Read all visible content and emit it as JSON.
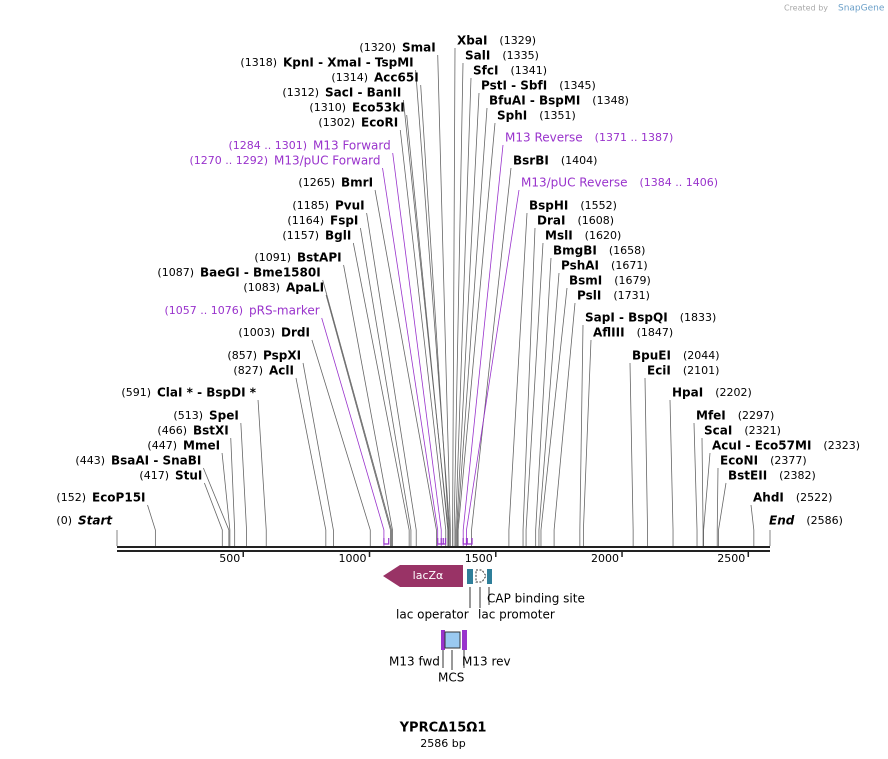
{
  "header": {
    "credit": "Created by",
    "brand": "SnapGene"
  },
  "map": {
    "ruler_ticks": [
      500,
      1000,
      1500,
      2000,
      2500
    ],
    "ends": [
      {
        "label": "Start",
        "text": "(0)",
        "bp": 0
      },
      {
        "label": "End",
        "text": "(2586)",
        "bp": 2586
      }
    ],
    "sites": [
      {
        "label": "SmaI",
        "text": "(1320)",
        "bp": 1320
      },
      {
        "label": "KpnI  - XmaI  - TspMI",
        "text": "(1318)",
        "bp": 1318
      },
      {
        "label": "Acc65I",
        "text": "(1314)",
        "bp": 1314
      },
      {
        "label": "SacI  - BanII",
        "text": "(1312)",
        "bp": 1312
      },
      {
        "label": "Eco53kI",
        "text": "(1310)",
        "bp": 1310
      },
      {
        "label": "EcoRI",
        "text": "(1302)",
        "bp": 1302
      },
      {
        "label": "BmrI",
        "text": "(1265)",
        "bp": 1265
      },
      {
        "label": "PvuI",
        "text": "(1185)",
        "bp": 1185
      },
      {
        "label": "FspI",
        "text": "(1164)",
        "bp": 1164
      },
      {
        "label": "BglI",
        "text": "(1157)",
        "bp": 1157
      },
      {
        "label": "BstAPI",
        "text": "(1091)",
        "bp": 1091
      },
      {
        "label": "BaeGI  - Bme1580I",
        "text": "(1087)",
        "bp": 1087
      },
      {
        "label": "ApaLI",
        "text": "(1083)",
        "bp": 1083
      },
      {
        "label": "DrdI",
        "text": "(1003)",
        "bp": 1003
      },
      {
        "label": "PspXI",
        "text": "(857)",
        "bp": 857
      },
      {
        "label": "AclI",
        "text": "(827)",
        "bp": 827
      },
      {
        "label": "ClaI *  - BspDI *",
        "text": "(591)",
        "bp": 591
      },
      {
        "label": "SpeI",
        "text": "(513)",
        "bp": 513
      },
      {
        "label": "BstXI",
        "text": "(466)",
        "bp": 466
      },
      {
        "label": "MmeI",
        "text": "(447)",
        "bp": 447
      },
      {
        "label": "BsaAI  - SnaBI",
        "text": "(443)",
        "bp": 443
      },
      {
        "label": "StuI",
        "text": "(417)",
        "bp": 417
      },
      {
        "label": "EcoP15I",
        "text": "(152)",
        "bp": 152
      },
      {
        "label": "XbaI",
        "text": "(1329)",
        "bp": 1329
      },
      {
        "label": "SalI",
        "text": "(1335)",
        "bp": 1335
      },
      {
        "label": "SfcI",
        "text": "(1341)",
        "bp": 1341
      },
      {
        "label": "PstI  - SbfI",
        "text": "(1345)",
        "bp": 1345
      },
      {
        "label": "BfuAI  - BspMI",
        "text": "(1348)",
        "bp": 1348
      },
      {
        "label": "SphI",
        "text": "(1351)",
        "bp": 1351
      },
      {
        "label": "BsrBI",
        "text": "(1404)",
        "bp": 1404
      },
      {
        "label": "BspHI",
        "text": "(1552)",
        "bp": 1552
      },
      {
        "label": "DraI",
        "text": "(1608)",
        "bp": 1608
      },
      {
        "label": "MslI",
        "text": "(1620)",
        "bp": 1620
      },
      {
        "label": "BmgBI",
        "text": "(1658)",
        "bp": 1658
      },
      {
        "label": "PshAI",
        "text": "(1671)",
        "bp": 1671
      },
      {
        "label": "BsmI",
        "text": "(1679)",
        "bp": 1679
      },
      {
        "label": "PslI",
        "text": "(1731)",
        "bp": 1731
      },
      {
        "label": "SapI  - BspQI",
        "text": "(1833)",
        "bp": 1833
      },
      {
        "label": "AflIII",
        "text": "(1847)",
        "bp": 1847
      },
      {
        "label": "BpuEI",
        "text": "(2044)",
        "bp": 2044
      },
      {
        "label": "EciI",
        "text": "(2101)",
        "bp": 2101
      },
      {
        "label": "HpaI",
        "text": "(2202)",
        "bp": 2202
      },
      {
        "label": "MfeI",
        "text": "(2297)",
        "bp": 2297
      },
      {
        "label": "ScaI",
        "text": "(2321)",
        "bp": 2321
      },
      {
        "label": "AcuI  - Eco57MI",
        "text": "(2323)",
        "bp": 2323
      },
      {
        "label": "EcoNI",
        "text": "(2377)",
        "bp": 2377
      },
      {
        "label": "BstEII",
        "text": "(2382)",
        "bp": 2382
      },
      {
        "label": "AhdI",
        "text": "(2522)",
        "bp": 2522
      }
    ],
    "features": [
      {
        "label": "M13 Forward",
        "text": "(1284 .. 1301)",
        "start": 1284,
        "end": 1301
      },
      {
        "label": "M13/pUC Forward",
        "text": "(1270 .. 1292)",
        "start": 1270,
        "end": 1292
      },
      {
        "label": "pRS-marker",
        "text": "(1057 .. 1076)",
        "start": 1057,
        "end": 1076
      },
      {
        "label": "M13 Reverse",
        "text": "(1371 .. 1387)",
        "start": 1371,
        "end": 1387
      },
      {
        "label": "M13/pUC Reverse",
        "text": "(1384 .. 1406)",
        "start": 1384,
        "end": 1406
      }
    ],
    "track": {
      "lacz": "lacZα",
      "cap": "CAP binding site",
      "operator": "lac operator",
      "promoter": "lac promoter",
      "m13_fwd": "M13 fwd",
      "m13_rev": "M13 rev",
      "mcs": "MCS"
    },
    "title": "YPRCΔ15Ω1",
    "size": "2586 bp"
  }
}
